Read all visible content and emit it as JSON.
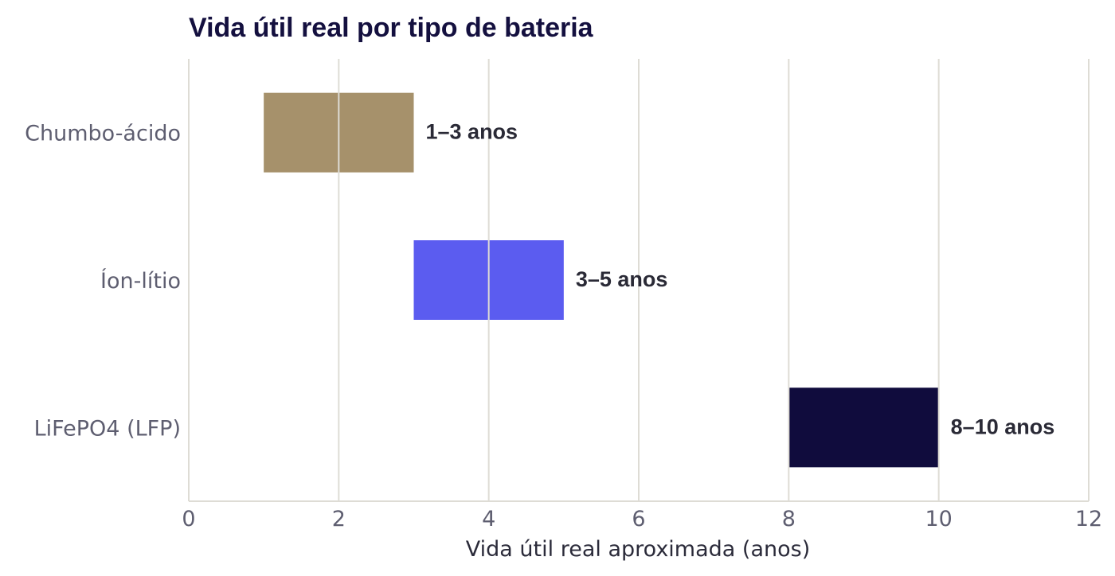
{
  "chart_data": {
    "type": "bar",
    "orientation": "horizontal",
    "title": "Vida útil real por tipo de bateria",
    "xlabel": "Vida útil real aproximada (anos)",
    "ylabel": "",
    "xlim": [
      0,
      12
    ],
    "xticks": [
      0,
      2,
      4,
      6,
      8,
      10,
      12
    ],
    "xtick_labels": [
      "0",
      "2",
      "4",
      "6",
      "8",
      "10",
      "12"
    ],
    "grid": "vertical",
    "categories": [
      "Chumbo-ácido",
      "Íon-lítio",
      "LiFePO4 (LFP)"
    ],
    "ranges": [
      {
        "start": 1,
        "end": 3,
        "label": "1–3 anos",
        "color": "#A6916B"
      },
      {
        "start": 3,
        "end": 5,
        "label": "3–5 anos",
        "color": "#5B5CF0"
      },
      {
        "start": 8,
        "end": 10,
        "label": "8–10 anos",
        "color": "#100C3D"
      }
    ]
  },
  "colors": {
    "title": "#14103F",
    "category_text": "#5E5E70",
    "tick_text": "#5E5E70",
    "axis_title": "#2B2B3A",
    "data_label": "#2A2A36",
    "grid": "#DEDCD5",
    "axis": "#DEDCD5"
  }
}
